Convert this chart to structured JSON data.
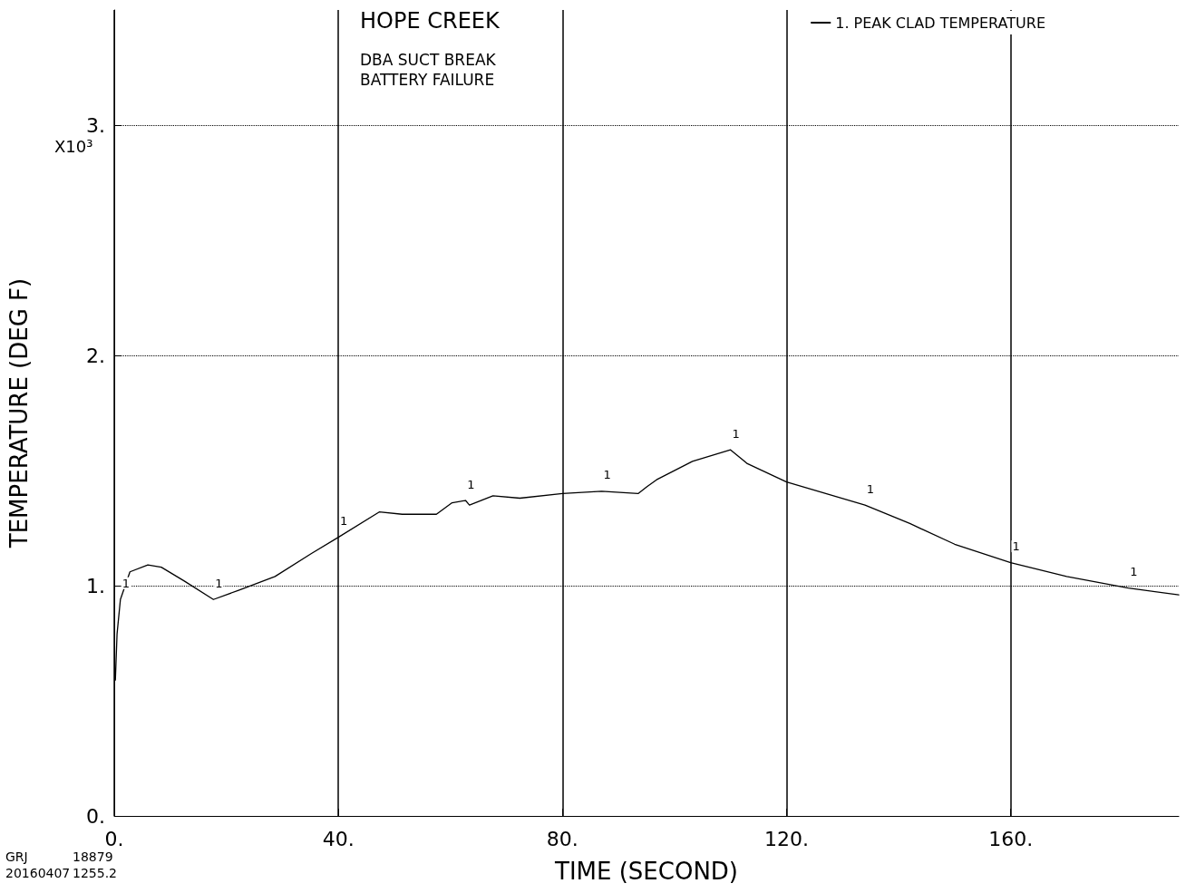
{
  "chart_data": {
    "type": "line",
    "title": "HOPE CREEK",
    "subtitle": "DBA SUCT BREAK\nBATTERY FAILURE",
    "xlabel": "TIME (SECOND)",
    "ylabel": "TEMPERATURE (DEG F)",
    "x": [
      0.2,
      0.5,
      1.1,
      2.8,
      6,
      8.4,
      12.5,
      17.7,
      22.2,
      28.7,
      35.2,
      40,
      47.3,
      51.4,
      57.5,
      60.3,
      62.7,
      63.4,
      67.6,
      72.4,
      80,
      87,
      93.5,
      95.1,
      96.8,
      103.2,
      110,
      113,
      120,
      134,
      142,
      150,
      160,
      170,
      181,
      190
    ],
    "series": [
      {
        "name": "1. PEAK CLAD TEMPERATURE",
        "color": "#000000",
        "values": [
          0.59,
          0.79,
          0.94,
          1.06,
          1.09,
          1.08,
          1.02,
          0.94,
          0.98,
          1.04,
          1.14,
          1.21,
          1.32,
          1.31,
          1.31,
          1.36,
          1.37,
          1.35,
          1.39,
          1.38,
          1.4,
          1.41,
          1.4,
          1.43,
          1.46,
          1.54,
          1.59,
          1.53,
          1.45,
          1.35,
          1.27,
          1.18,
          1.1,
          1.04,
          0.99,
          0.96
        ]
      }
    ],
    "xlim": [
      0,
      190
    ],
    "xticks": [
      {
        "value": 0,
        "label": "0."
      },
      {
        "value": 40,
        "label": "40."
      },
      {
        "value": 80,
        "label": "80."
      },
      {
        "value": 120,
        "label": "120."
      },
      {
        "value": 160,
        "label": "160."
      }
    ],
    "ylim": [
      0,
      3.5
    ],
    "yticks": [
      {
        "value": 0,
        "label": "0."
      },
      {
        "value": 1,
        "label": "1."
      },
      {
        "value": 2,
        "label": "2."
      },
      {
        "value": 3,
        "label": "3."
      }
    ],
    "grid": true,
    "legend": "top right",
    "marker": "none",
    "line_style": "solid",
    "annotations": [
      "X10³",
      "GRJ",
      "18879",
      "20160407",
      "1255.2",
      {
        "text": "1",
        "x": 1.1,
        "y": 0.94
      },
      {
        "text": "1",
        "x": 17.7,
        "y": 0.94
      },
      {
        "text": "1",
        "x": 40,
        "y": 1.21
      },
      {
        "text": "1",
        "x": 62.7,
        "y": 1.37
      },
      {
        "text": "1",
        "x": 87,
        "y": 1.41
      },
      {
        "text": "1",
        "x": 110,
        "y": 1.59
      },
      {
        "text": "1",
        "x": 134,
        "y": 1.35
      },
      {
        "text": "1",
        "x": 160,
        "y": 1.1
      },
      {
        "text": "1",
        "x": 181,
        "y": 0.99
      }
    ]
  }
}
